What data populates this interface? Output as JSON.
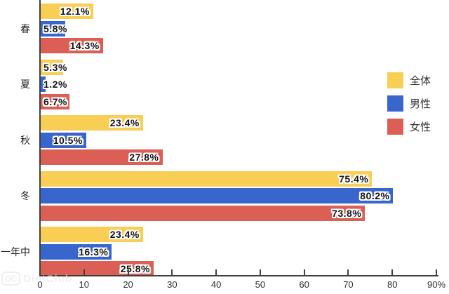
{
  "chart_data": {
    "type": "bar",
    "orientation": "horizontal",
    "title": "",
    "categories": [
      "春",
      "夏",
      "秋",
      "冬",
      "一年中"
    ],
    "series": [
      {
        "key": "zentai",
        "name": "全体",
        "color": "#F8CE55",
        "values": [
          12.1,
          5.3,
          23.4,
          75.4,
          23.4
        ]
      },
      {
        "key": "dansei",
        "name": "男性",
        "color": "#3966CC",
        "values": [
          5.8,
          1.2,
          10.5,
          80.2,
          16.3
        ]
      },
      {
        "key": "josei",
        "name": "女性",
        "color": "#DC5F55",
        "values": [
          14.3,
          6.7,
          27.8,
          73.8,
          25.8
        ]
      }
    ],
    "value_suffix": "%",
    "xlim": [
      0,
      90
    ],
    "x_tick_step": 10,
    "x_tick_labels": [
      "0",
      "10",
      "20",
      "30",
      "40",
      "50",
      "60",
      "70",
      "80",
      "90%"
    ],
    "legend_position": "right",
    "grid": false,
    "axis_color": "#3F3F3F",
    "bar_label_color": "#141414",
    "tick_label_color": "#2B2B2B"
  },
  "watermark": {
    "badge": "DC",
    "text": "DietClub"
  }
}
